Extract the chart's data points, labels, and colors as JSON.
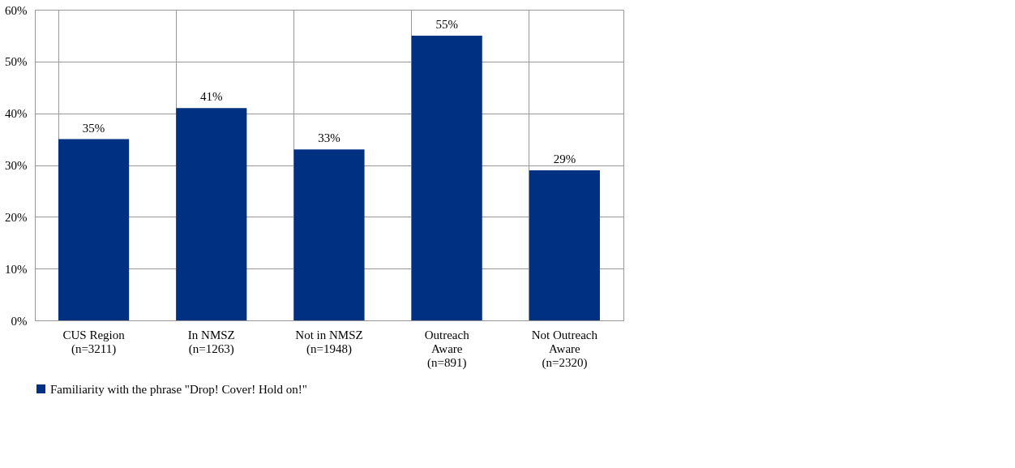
{
  "chart_data": {
    "type": "bar",
    "categories": [
      "CUS Region\n(n=3211)",
      "In NMSZ\n(n=1263)",
      "Not in NMSZ\n(n=1948)",
      "Outreach\nAware\n(n=891)",
      "Not Outreach\nAware\n(n=2320)"
    ],
    "series": [
      {
        "name": "Familiarity with the phrase \"Drop! Cover! Hold on!\"",
        "color": "#003082",
        "values": [
          35,
          41,
          33,
          55,
          29
        ]
      }
    ],
    "ylim": [
      0,
      60
    ],
    "yticks": [
      {
        "value": 0,
        "label": "0%"
      },
      {
        "value": 10,
        "label": "10%"
      },
      {
        "value": 20,
        "label": "20%"
      },
      {
        "value": 30,
        "label": "30%"
      },
      {
        "value": 40,
        "label": "40%"
      },
      {
        "value": 50,
        "label": "50%"
      },
      {
        "value": 60,
        "label": "60%"
      }
    ],
    "value_labels": [
      "35%",
      "41%",
      "33%",
      "55%",
      "29%"
    ],
    "grid": true,
    "legend": "bottom"
  }
}
